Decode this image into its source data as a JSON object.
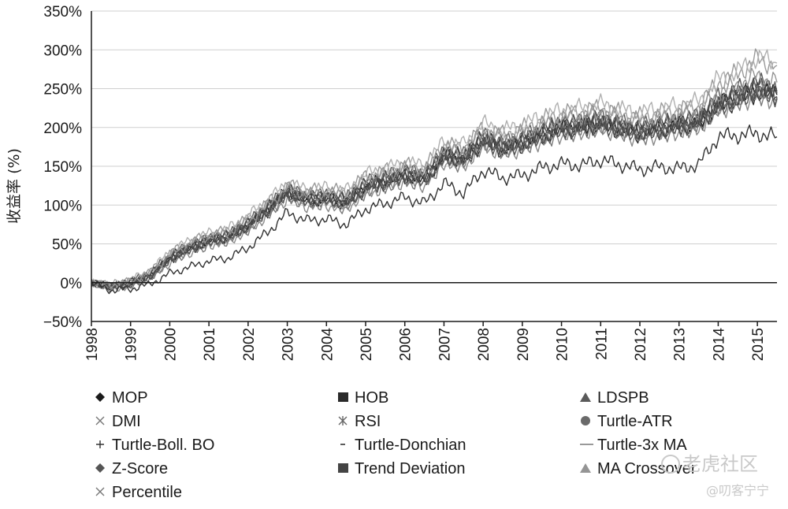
{
  "chart_data": {
    "type": "line",
    "ylabel": "收益率 (%)",
    "yticks": [
      "350%",
      "300%",
      "250%",
      "200%",
      "150%",
      "100%",
      "50%",
      "0%",
      "−50%"
    ],
    "ylim": [
      -50,
      350
    ],
    "xlim": [
      1998,
      2015.5
    ],
    "xticks": [
      "1998",
      "1999",
      "2000",
      "2001",
      "2002",
      "2003",
      "2004",
      "2005",
      "2006",
      "2007",
      "2008",
      "2009",
      "2010",
      "2011",
      "2012",
      "2013",
      "2014",
      "2015"
    ],
    "grid": true,
    "legend_position": "bottom",
    "x": [
      1998,
      1998.5,
      1999,
      1999.5,
      2000,
      2000.5,
      2001,
      2001.5,
      2002,
      2002.5,
      2003,
      2003.5,
      2004,
      2004.5,
      2005,
      2005.5,
      2006,
      2006.5,
      2007,
      2007.5,
      2008,
      2008.5,
      2009,
      2009.5,
      2010,
      2010.5,
      2011,
      2011.5,
      2012,
      2012.5,
      2013,
      2013.5,
      2014,
      2014.5,
      2015,
      2015.5
    ],
    "series": [
      {
        "name": "MOP",
        "marker": "diamond",
        "color": "#1a1a1a",
        "values": [
          0,
          -5,
          0,
          10,
          32,
          45,
          55,
          60,
          75,
          95,
          118,
          108,
          110,
          105,
          125,
          132,
          140,
          135,
          165,
          160,
          185,
          175,
          182,
          192,
          200,
          202,
          207,
          200,
          195,
          200,
          203,
          208,
          230,
          240,
          250,
          242
        ]
      },
      {
        "name": "HOB",
        "marker": "square",
        "color": "#2a2a2a",
        "values": [
          0,
          -6,
          -2,
          8,
          30,
          42,
          52,
          58,
          72,
          92,
          115,
          104,
          106,
          100,
          120,
          128,
          136,
          130,
          160,
          156,
          180,
          170,
          176,
          186,
          194,
          197,
          203,
          195,
          190,
          194,
          198,
          203,
          225,
          234,
          244,
          237
        ]
      },
      {
        "name": "LDSPB",
        "marker": "triangle",
        "color": "#5a5a5a",
        "values": [
          0,
          -4,
          2,
          12,
          35,
          48,
          58,
          63,
          78,
          98,
          120,
          112,
          114,
          110,
          130,
          137,
          145,
          140,
          170,
          166,
          190,
          180,
          188,
          198,
          206,
          208,
          213,
          206,
          202,
          206,
          210,
          215,
          238,
          248,
          258,
          250
        ]
      },
      {
        "name": "DMI",
        "marker": "x",
        "color": "#8a8a8a",
        "values": [
          0,
          -8,
          -5,
          5,
          25,
          38,
          48,
          53,
          67,
          86,
          108,
          98,
          100,
          95,
          115,
          122,
          130,
          125,
          155,
          150,
          176,
          166,
          172,
          182,
          190,
          193,
          198,
          191,
          186,
          190,
          194,
          199,
          222,
          231,
          241,
          234
        ]
      },
      {
        "name": "RSI",
        "marker": "asterisk",
        "color": "#9a9a9a",
        "values": [
          0,
          -3,
          3,
          14,
          38,
          52,
          62,
          68,
          83,
          103,
          126,
          118,
          121,
          117,
          138,
          145,
          152,
          148,
          178,
          174,
          200,
          192,
          199,
          210,
          218,
          221,
          226,
          219,
          214,
          219,
          223,
          228,
          258,
          270,
          288,
          280
        ]
      },
      {
        "name": "Turtle-ATR",
        "marker": "circle",
        "color": "#6a6a6a",
        "values": [
          0,
          -5,
          1,
          11,
          33,
          46,
          56,
          61,
          76,
          96,
          118,
          110,
          112,
          107,
          127,
          134,
          142,
          137,
          167,
          162,
          187,
          177,
          184,
          194,
          202,
          204,
          209,
          202,
          197,
          202,
          205,
          210,
          232,
          242,
          252,
          244
        ]
      },
      {
        "name": "Turtle-Boll. BO",
        "marker": "plus",
        "color": "#7a7a7a",
        "values": [
          0,
          -7,
          -3,
          6,
          27,
          39,
          48,
          54,
          68,
          88,
          110,
          100,
          102,
          96,
          116,
          123,
          131,
          126,
          156,
          152,
          178,
          168,
          174,
          184,
          192,
          195,
          200,
          193,
          188,
          192,
          196,
          201,
          224,
          233,
          243,
          236
        ]
      },
      {
        "name": "Turtle-Donchian",
        "marker": "dash",
        "color": "#4a4a4a",
        "values": [
          0,
          -5,
          0,
          9,
          31,
          44,
          54,
          59,
          74,
          94,
          116,
          106,
          108,
          103,
          123,
          130,
          138,
          133,
          163,
          158,
          183,
          173,
          180,
          190,
          198,
          200,
          205,
          198,
          193,
          197,
          201,
          206,
          228,
          238,
          248,
          240
        ]
      },
      {
        "name": "Turtle-3x MA",
        "marker": "line",
        "color": "#b0b0b0",
        "values": [
          0,
          -2,
          4,
          15,
          40,
          54,
          64,
          70,
          86,
          106,
          128,
          120,
          123,
          119,
          140,
          147,
          155,
          151,
          182,
          178,
          205,
          196,
          203,
          214,
          222,
          225,
          230,
          223,
          219,
          224,
          228,
          233,
          262,
          272,
          290,
          283
        ]
      },
      {
        "name": "Z-Score",
        "marker": "diamond",
        "color": "#555555",
        "values": [
          0,
          -6,
          -1,
          9,
          30,
          43,
          53,
          58,
          73,
          93,
          116,
          106,
          108,
          102,
          122,
          129,
          137,
          132,
          162,
          157,
          182,
          172,
          178,
          188,
          196,
          199,
          204,
          197,
          192,
          196,
          200,
          205,
          227,
          236,
          246,
          239
        ]
      },
      {
        "name": "Trend Deviation",
        "marker": "square",
        "color": "#444444",
        "values": [
          0,
          -4,
          1,
          10,
          33,
          46,
          56,
          61,
          76,
          96,
          119,
          110,
          112,
          107,
          127,
          134,
          142,
          137,
          167,
          162,
          188,
          178,
          185,
          195,
          203,
          206,
          211,
          204,
          199,
          203,
          207,
          212,
          235,
          245,
          255,
          247
        ]
      },
      {
        "name": "MA Crossover",
        "marker": "triangle",
        "color": "#959595",
        "values": [
          0,
          -3,
          2,
          13,
          36,
          50,
          60,
          65,
          80,
          100,
          122,
          114,
          116,
          112,
          133,
          140,
          147,
          143,
          173,
          169,
          195,
          186,
          193,
          203,
          211,
          214,
          219,
          212,
          208,
          212,
          216,
          221,
          245,
          255,
          266,
          258
        ]
      },
      {
        "name": "Percentile",
        "marker": "x",
        "color": "#333333",
        "values": [
          0,
          -10,
          -8,
          -2,
          12,
          20,
          28,
          32,
          45,
          65,
          90,
          80,
          82,
          75,
          95,
          102,
          110,
          102,
          128,
          115,
          145,
          135,
          138,
          148,
          153,
          151,
          158,
          152,
          146,
          149,
          147,
          152,
          188,
          190,
          192,
          188
        ]
      }
    ]
  },
  "watermark": {
    "brand": "老虎社区",
    "user": "@叨客宁宁"
  }
}
